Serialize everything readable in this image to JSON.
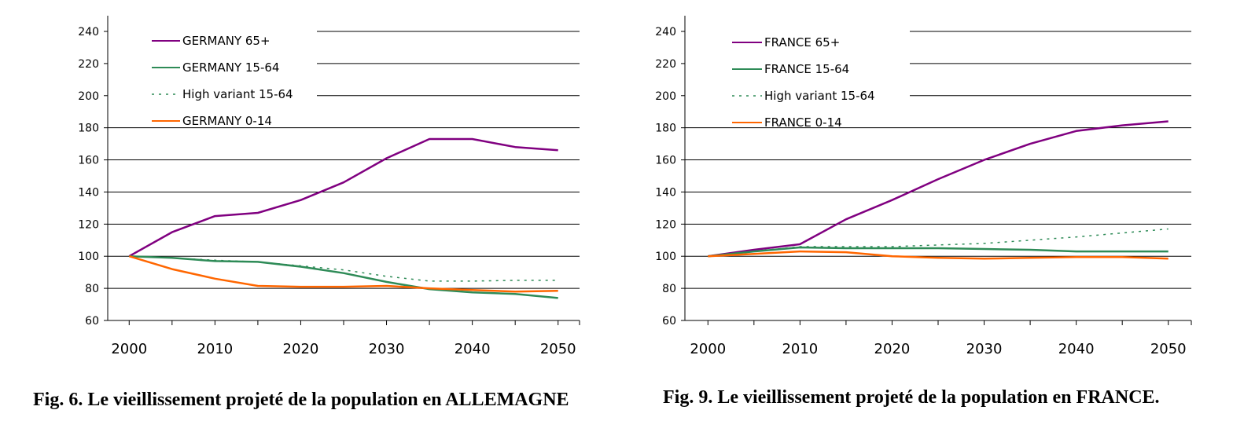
{
  "colors": {
    "purple": "#800080",
    "green": "#2e8b57",
    "orange": "#ff6600",
    "grid": "#000000"
  },
  "chart_data": [
    {
      "type": "line",
      "caption": "Fig. 6. Le vieillissement projeté de la population en ALLEMAGNE",
      "x_ticks": [
        "2000",
        "2010",
        "2020",
        "2030",
        "2040",
        "2050"
      ],
      "y_ticks": [
        "60",
        "80",
        "100",
        "120",
        "140",
        "160",
        "180",
        "200",
        "220",
        "240"
      ],
      "ylim": [
        60,
        240
      ],
      "xlim": [
        1997.5,
        2052.5
      ],
      "grid": "horizontal",
      "legend_position": "top-left",
      "series": [
        {
          "name": "GERMANY 65+",
          "color": "#800080",
          "style": "solid",
          "x": [
            2000,
            2005,
            2010,
            2015,
            2020,
            2025,
            2030,
            2035,
            2040,
            2045,
            2050
          ],
          "y": [
            100,
            115,
            125,
            127,
            135,
            146,
            161,
            173,
            173,
            168,
            166
          ]
        },
        {
          "name": "GERMANY 15-64",
          "color": "#2e8b57",
          "style": "solid",
          "x": [
            2000,
            2005,
            2010,
            2015,
            2020,
            2025,
            2030,
            2035,
            2040,
            2045,
            2050
          ],
          "y": [
            100,
            99,
            97,
            96.5,
            93.5,
            89.5,
            84,
            79.5,
            77.5,
            76.5,
            74
          ]
        },
        {
          "name": "High variant  15-64",
          "color": "#2e8b57",
          "style": "dotted",
          "x": [
            2000,
            2005,
            2010,
            2015,
            2020,
            2025,
            2030,
            2035,
            2040,
            2045,
            2050
          ],
          "y": [
            100,
            99,
            97.5,
            96.5,
            94,
            91.5,
            87.5,
            84.5,
            84.5,
            85,
            85
          ]
        },
        {
          "name": "GERMANY 0-14",
          "color": "#ff6600",
          "style": "solid",
          "x": [
            2000,
            2005,
            2010,
            2015,
            2020,
            2025,
            2030,
            2035,
            2040,
            2045,
            2050
          ],
          "y": [
            100,
            92,
            86,
            81.5,
            81,
            81,
            81.5,
            80,
            79,
            78,
            78.5
          ]
        }
      ]
    },
    {
      "type": "line",
      "caption": "Fig. 9. Le vieillissement projeté de la population en FRANCE.",
      "x_ticks": [
        "2000",
        "2010",
        "2020",
        "2030",
        "2040",
        "2050"
      ],
      "y_ticks": [
        "60",
        "80",
        "100",
        "120",
        "140",
        "160",
        "180",
        "200",
        "220",
        "240"
      ],
      "ylim": [
        60,
        240
      ],
      "xlim": [
        1997.5,
        2052.5
      ],
      "grid": "horizontal",
      "legend_position": "top-left",
      "series": [
        {
          "name": "FRANCE  65+",
          "color": "#800080",
          "style": "solid",
          "x": [
            2000,
            2005,
            2010,
            2015,
            2020,
            2025,
            2030,
            2035,
            2040,
            2045,
            2050
          ],
          "y": [
            100,
            104,
            107.5,
            123,
            135,
            148,
            160,
            170,
            178,
            181.5,
            184
          ]
        },
        {
          "name": "FRANCE  15-64",
          "color": "#2e8b57",
          "style": "solid",
          "x": [
            2000,
            2005,
            2010,
            2015,
            2020,
            2025,
            2030,
            2035,
            2040,
            2045,
            2050
          ],
          "y": [
            100,
            103,
            105.5,
            105,
            105,
            105,
            104.5,
            104,
            103,
            103,
            103
          ]
        },
        {
          "name": "High variant  15-64",
          "color": "#2e8b57",
          "style": "dotted",
          "x": [
            2000,
            2005,
            2010,
            2015,
            2020,
            2025,
            2030,
            2035,
            2040,
            2045,
            2050
          ],
          "y": [
            100,
            103,
            106,
            106,
            106,
            107,
            108,
            110,
            112,
            114.5,
            117
          ]
        },
        {
          "name": "FRANCE  0-14",
          "color": "#ff6600",
          "style": "solid",
          "x": [
            2000,
            2005,
            2010,
            2015,
            2020,
            2025,
            2030,
            2035,
            2040,
            2045,
            2050
          ],
          "y": [
            100,
            101.5,
            103,
            102.5,
            100,
            99,
            98.5,
            99,
            99.5,
            99.5,
            98.5
          ]
        }
      ]
    }
  ]
}
